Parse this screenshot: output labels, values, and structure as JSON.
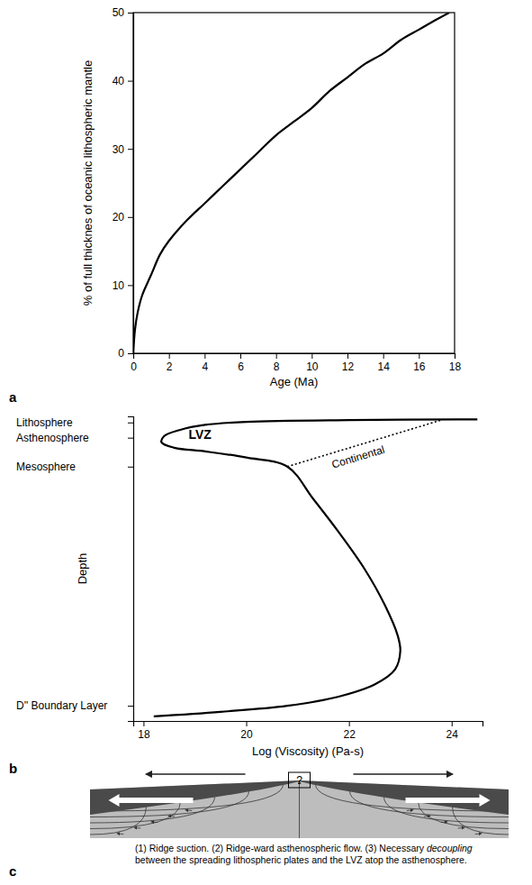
{
  "chart_data": [
    {
      "type": "line",
      "panel": "a",
      "x_label": "Age (Ma)",
      "y_label": "% of full thicknes of oceanic lithospheric mantle",
      "x": [
        0,
        0.1,
        0.25,
        0.5,
        1,
        1.5,
        2,
        3,
        4,
        5,
        6,
        7,
        8,
        9,
        10,
        11,
        12,
        13,
        14,
        15,
        16,
        17,
        17.7
      ],
      "series": [
        {
          "color": "#000000",
          "values": [
            0,
            3.5,
            6,
            8.5,
            11.5,
            14.5,
            16.5,
            19.5,
            22,
            24.5,
            27,
            29.5,
            32,
            34,
            36,
            38.5,
            40.5,
            42.5,
            44,
            46,
            47.5,
            49,
            50
          ]
        }
      ],
      "xlim": [
        0,
        18
      ],
      "xticks": [
        0,
        2,
        4,
        6,
        8,
        10,
        12,
        14,
        16,
        18
      ],
      "ylim": [
        0,
        50
      ],
      "yticks": [
        0,
        10,
        20,
        30,
        40,
        50
      ]
    },
    {
      "type": "line",
      "panel": "b",
      "x_label": "Log (Viscosity) (Pa-s)",
      "y_label": "Depth",
      "series": [
        {
          "color": "#000000",
          "line_style": "solid",
          "x": [
            24.5,
            22.0,
            20.0,
            19.2,
            18.7,
            18.4,
            18.35,
            18.6,
            19.2,
            20.0,
            20.8,
            21.3,
            21.8,
            22.3,
            22.7,
            22.95,
            23.0,
            22.9,
            22.5,
            21.8,
            20.8,
            19.5,
            18.2
          ],
          "values": [
            1,
            1.2,
            1.8,
            2.8,
            4.5,
            6.5,
            8.5,
            10.3,
            11.5,
            13.5,
            16.5,
            27,
            38,
            50,
            62,
            72,
            77,
            83,
            88,
            92,
            95,
            97,
            98.5
          ]
        },
        {
          "color": "#000000",
          "line_style": "dashed",
          "x": [
            20.8,
            23.8
          ],
          "values": [
            16.5,
            1.2
          ]
        }
      ],
      "annotations": [
        {
          "text": "LVZ",
          "x": 19.1,
          "y": 7.5
        },
        {
          "text": "Continental",
          "x": 22.2,
          "y": 14.5
        }
      ],
      "xlim": [
        17.8,
        24.6
      ],
      "xticks": [
        18,
        20,
        22,
        24
      ],
      "ylim": [
        100,
        0
      ],
      "yticks": [
        {
          "value": 2,
          "label": "Lithosphere"
        },
        {
          "value": 7,
          "label": "Asthenosphere"
        },
        {
          "value": 16.5,
          "label": "Mesosphere"
        },
        {
          "value": 95,
          "label": "D'' Boundary Layer"
        }
      ]
    }
  ],
  "diagram": {
    "panel": "c",
    "ridge_mark": "?",
    "caption": {
      "before": "(1) Ridge suction. (2) Ridge-ward asthenospheric flow. (3) Necessary ",
      "emphasis": "decoupling",
      "after": " between the spreading lithospheric plates and the LVZ atop the asthenosphere."
    }
  }
}
